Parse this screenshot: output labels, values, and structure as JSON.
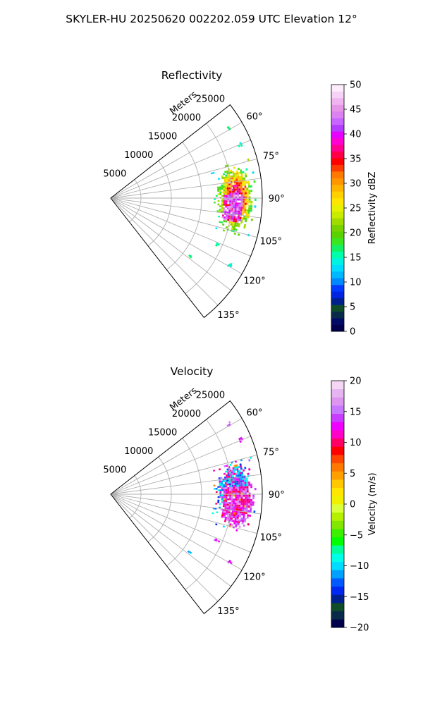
{
  "figure": {
    "title": "SKYLER-HU  20250620  002202.059 UTC Elevation 12°"
  },
  "chart_data": [
    {
      "type": "heatmap",
      "subtype": "polar-sector",
      "title": "Reflectivity",
      "radial_label": "Meters",
      "radial_ticks": [
        5000,
        10000,
        15000,
        20000,
        25000
      ],
      "radial_tick_labels": [
        "5000",
        "10000",
        "15000",
        "20000",
        "25000"
      ],
      "rmax": 25000,
      "angle_range_deg": [
        52,
        142
      ],
      "angle_ticks": [
        60,
        75,
        90,
        105,
        120,
        135
      ],
      "angle_tick_labels": [
        "60°",
        "75°",
        "90°",
        "105°",
        "120°",
        "135°"
      ],
      "grid": true,
      "colorbar": {
        "label": "Reflectivity dBZ",
        "min": 0,
        "max": 50,
        "ticks": [
          0,
          5,
          10,
          15,
          20,
          25,
          30,
          35,
          40,
          45,
          50
        ],
        "tick_labels": [
          "0",
          "5",
          "10",
          "15",
          "20",
          "25",
          "30",
          "35",
          "40",
          "45",
          "50"
        ],
        "colors": [
          "#00004c",
          "#000b66",
          "#0a2a4a",
          "#0f4d2a",
          "#00208e",
          "#0024e0",
          "#003cff",
          "#0088ff",
          "#00b8ff",
          "#00dcff",
          "#00f2e0",
          "#00ffaa",
          "#14f064",
          "#3ce61e",
          "#5ad200",
          "#78d200",
          "#a0dc00",
          "#c8eb00",
          "#e6f000",
          "#ffe600",
          "#ffd000",
          "#ffb400",
          "#ff9600",
          "#ff7800",
          "#ff3c00",
          "#ff0000",
          "#ff0048",
          "#ff0090",
          "#ff00d2",
          "#e600ff",
          "#b43cff",
          "#c864ff",
          "#dc82f0",
          "#e696e6",
          "#f0b4f0",
          "#f7d2f7",
          "#fcecfc"
        ]
      },
      "echo": {
        "dominant_range_m": [
          17000,
          24000
        ],
        "dominant_azimuth_deg": [
          74,
          106
        ],
        "core_value": 45,
        "core_azimuth_deg": [
          88,
          101
        ],
        "core_range_m": [
          18500,
          21500
        ],
        "outer_value": 17,
        "scattered_points": [
          [
            59,
            22500,
            16
          ],
          [
            67,
            23000,
            15
          ],
          [
            113,
            19000,
            16
          ],
          [
            119,
            22500,
            14
          ],
          [
            126,
            16000,
            16
          ]
        ]
      }
    },
    {
      "type": "heatmap",
      "subtype": "polar-sector",
      "title": "Velocity",
      "radial_label": "Meters",
      "radial_ticks": [
        5000,
        10000,
        15000,
        20000,
        25000
      ],
      "radial_tick_labels": [
        "5000",
        "10000",
        "15000",
        "20000",
        "25000"
      ],
      "rmax": 25000,
      "angle_range_deg": [
        52,
        142
      ],
      "angle_ticks": [
        60,
        75,
        90,
        105,
        120,
        135
      ],
      "angle_tick_labels": [
        "60°",
        "75°",
        "90°",
        "105°",
        "120°",
        "135°"
      ],
      "grid": true,
      "colorbar": {
        "label": "Velocity (m/s)",
        "min": -20,
        "max": 20,
        "ticks": [
          -20,
          -15,
          -10,
          -5,
          0,
          5,
          10,
          15,
          20
        ],
        "tick_labels": [
          "−20",
          "−15",
          "−10",
          "−5",
          "0",
          "5",
          "10",
          "15",
          "20"
        ],
        "colors": [
          "#00004c",
          "#0a2a4a",
          "#0f4d2a",
          "#00208e",
          "#0028f0",
          "#005aff",
          "#00a0ff",
          "#00dcff",
          "#00ffe6",
          "#00ff9a",
          "#00ff00",
          "#3cf000",
          "#82e600",
          "#b4f000",
          "#dcff3c",
          "#f0f000",
          "#ffe600",
          "#ffc800",
          "#ffa000",
          "#ff7800",
          "#ff4600",
          "#ff0000",
          "#ff0064",
          "#ff00c8",
          "#f000ff",
          "#c83cff",
          "#c878ff",
          "#dc96f0",
          "#e6b4f0",
          "#f5d7f5"
        ]
      },
      "echo": {
        "dominant_range_m": [
          17000,
          24000
        ],
        "dominant_azimuth_deg": [
          74,
          106
        ],
        "core_value": 13,
        "core_azimuth_deg": [
          86,
          104
        ],
        "core_range_m": [
          18500,
          23500
        ],
        "outer_value": -11,
        "scattered_points": [
          [
            59,
            22500,
            15
          ],
          [
            67,
            23000,
            14
          ],
          [
            113,
            19000,
            13
          ],
          [
            119,
            22500,
            13
          ],
          [
            126,
            16000,
            -11
          ]
        ]
      }
    }
  ]
}
